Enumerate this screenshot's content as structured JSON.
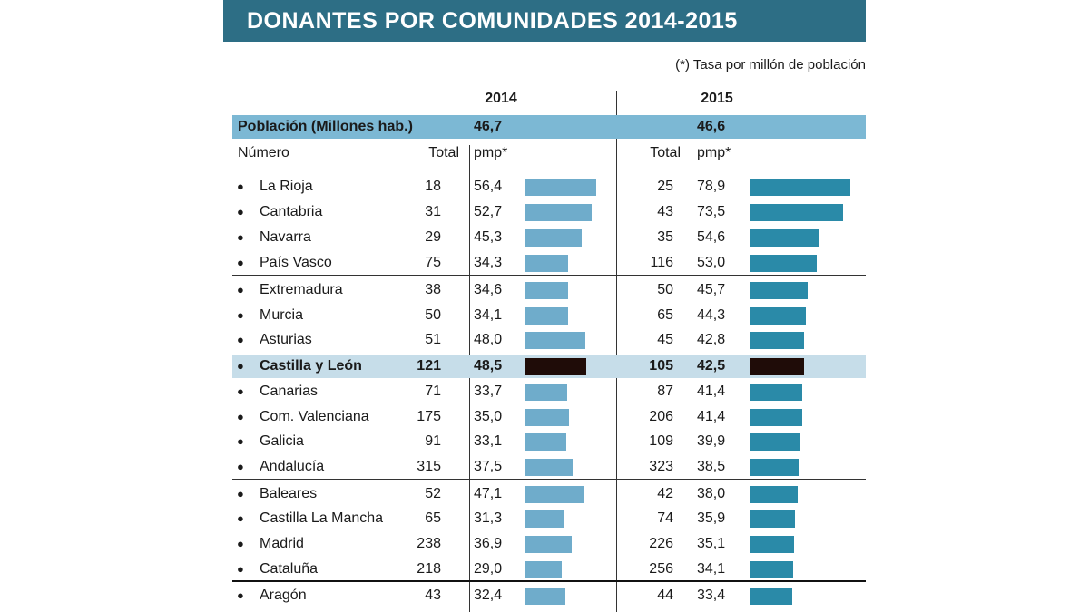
{
  "title": "DONANTES POR COMUNIDADES 2014-2015",
  "note": "(*) Tasa por millón de población",
  "years": {
    "y2014": "2014",
    "y2015": "2015"
  },
  "population": {
    "label": "Población (Millones hab.)",
    "v2014": "46,7",
    "v2015": "46,6"
  },
  "headers": {
    "numero": "Número",
    "total": "Total",
    "pmp": "pmp*"
  },
  "colors": {
    "banner": "#2d6e85",
    "bar2014": "#6faccb",
    "bar2015": "#2a8aa8",
    "highlight_bar": "#1f0c08",
    "highlight_row": "#c6dde9"
  },
  "chart_data": {
    "type": "table",
    "title": "DONANTES POR COMUNIDADES 2014-2015",
    "highlight": "Castilla y León",
    "columns": [
      "Número",
      "Total 2014",
      "pmp* 2014",
      "Total 2015",
      "pmp* 2015"
    ],
    "rows": [
      {
        "name": "La Rioja",
        "t2014": "18",
        "p2014": "56,4",
        "t2015": "25",
        "p2015": "78,9",
        "v2014": 56.4,
        "v2015": 78.9
      },
      {
        "name": "Cantabria",
        "t2014": "31",
        "p2014": "52,7",
        "t2015": "43",
        "p2015": "73,5",
        "v2014": 52.7,
        "v2015": 73.5
      },
      {
        "name": "Navarra",
        "t2014": "29",
        "p2014": "45,3",
        "t2015": "35",
        "p2015": "54,6",
        "v2014": 45.3,
        "v2015": 54.6
      },
      {
        "name": "País Vasco",
        "t2014": "75",
        "p2014": "34,3",
        "t2015": "116",
        "p2015": "53,0",
        "v2014": 34.3,
        "v2015": 53.0
      },
      {
        "name": "Extremadura",
        "t2014": "38",
        "p2014": "34,6",
        "t2015": "50",
        "p2015": "45,7",
        "v2014": 34.6,
        "v2015": 45.7
      },
      {
        "name": "Murcia",
        "t2014": "50",
        "p2014": "34,1",
        "t2015": "65",
        "p2015": "44,3",
        "v2014": 34.1,
        "v2015": 44.3
      },
      {
        "name": "Asturias",
        "t2014": "51",
        "p2014": "48,0",
        "t2015": "45",
        "p2015": "42,8",
        "v2014": 48.0,
        "v2015": 42.8
      },
      {
        "name": "Castilla y León",
        "t2014": "121",
        "p2014": "48,5",
        "t2015": "105",
        "p2015": "42,5",
        "v2014": 48.5,
        "v2015": 42.5
      },
      {
        "name": "Canarias",
        "t2014": "71",
        "p2014": "33,7",
        "t2015": "87",
        "p2015": "41,4",
        "v2014": 33.7,
        "v2015": 41.4
      },
      {
        "name": "Com. Valenciana",
        "t2014": "175",
        "p2014": "35,0",
        "t2015": "206",
        "p2015": "41,4",
        "v2014": 35.0,
        "v2015": 41.4
      },
      {
        "name": "Galicia",
        "t2014": "91",
        "p2014": "33,1",
        "t2015": "109",
        "p2015": "39,9",
        "v2014": 33.1,
        "v2015": 39.9
      },
      {
        "name": "Andalucía",
        "t2014": "315",
        "p2014": "37,5",
        "t2015": "323",
        "p2015": "38,5",
        "v2014": 37.5,
        "v2015": 38.5
      },
      {
        "name": "Baleares",
        "t2014": "52",
        "p2014": "47,1",
        "t2015": "42",
        "p2015": "38,0",
        "v2014": 47.1,
        "v2015": 38.0
      },
      {
        "name": "Castilla La Mancha",
        "t2014": "65",
        "p2014": "31,3",
        "t2015": "74",
        "p2015": "35,9",
        "v2014": 31.3,
        "v2015": 35.9
      },
      {
        "name": "Madrid",
        "t2014": "238",
        "p2014": "36,9",
        "t2015": "226",
        "p2015": "35,1",
        "v2014": 36.9,
        "v2015": 35.1
      },
      {
        "name": "Cataluña",
        "t2014": "218",
        "p2014": "29,0",
        "t2015": "256",
        "p2015": "34,1",
        "v2014": 29.0,
        "v2015": 34.1
      },
      {
        "name": "Aragón",
        "t2014": "43",
        "p2014": "32,4",
        "t2015": "44",
        "p2015": "33,4",
        "v2014": 32.4,
        "v2015": 33.4
      }
    ]
  }
}
